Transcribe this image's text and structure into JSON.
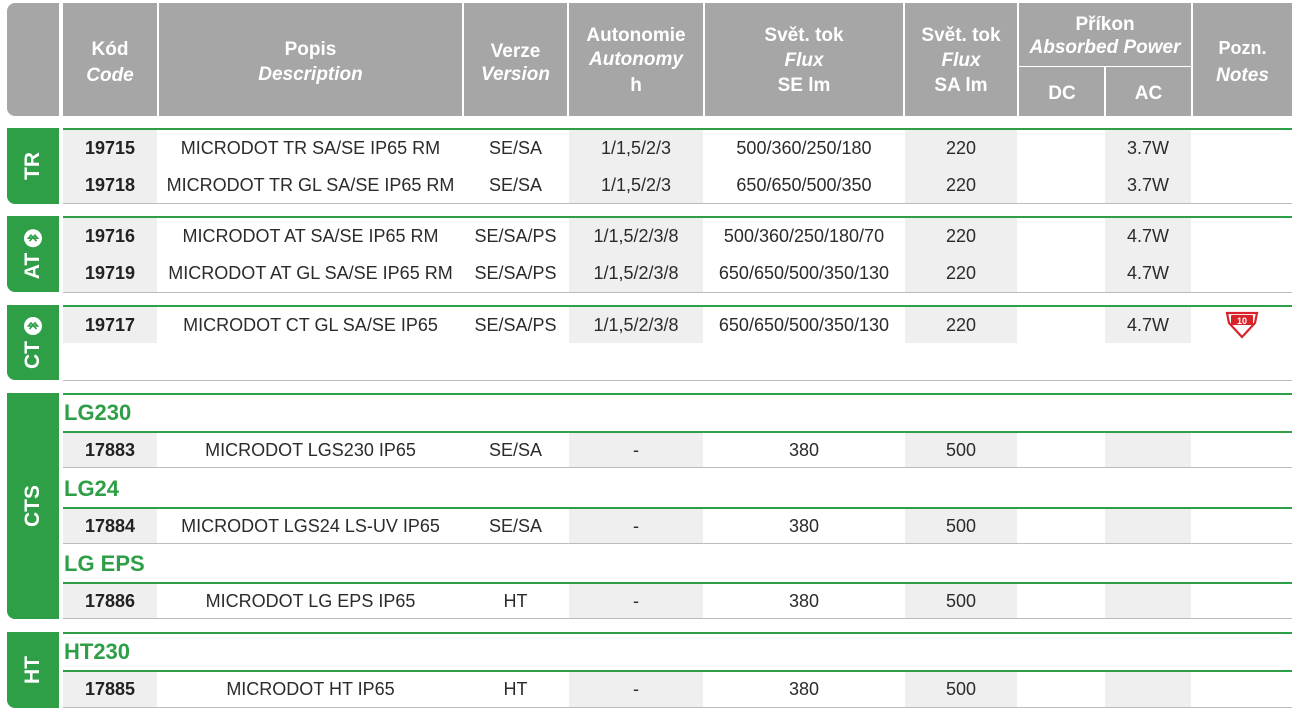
{
  "header": {
    "code": {
      "cz": "Kód",
      "en": "Code"
    },
    "description": {
      "cz": "Popis",
      "en": "Description"
    },
    "version": {
      "cz": "Verze",
      "en": "Version"
    },
    "autonomy": {
      "cz": "Autonomie",
      "en": "Autonomy",
      "unit": "h"
    },
    "flux_se": {
      "cz": "Svět. tok",
      "en": "Flux",
      "unit": "SE lm"
    },
    "flux_sa": {
      "cz": "Svět. tok",
      "en": "Flux",
      "unit": "SA lm"
    },
    "power": {
      "cz": "Příkon",
      "en": "Absorbed Power",
      "dc": "DC",
      "ac": "AC"
    },
    "notes": {
      "cz": "Pozn.",
      "en": "Notes"
    }
  },
  "groups": {
    "tr": {
      "label": "TR"
    },
    "at": {
      "label": "AT"
    },
    "ct": {
      "label": "CT"
    },
    "cts": {
      "label": "CTS"
    },
    "ht": {
      "label": "HT"
    }
  },
  "subheads": {
    "lg230": "LG230",
    "lg24": "LG24",
    "lgeps": "LG EPS",
    "ht230": "HT230"
  },
  "rows": {
    "r19715": {
      "code": "19715",
      "desc": "MICRODOT TR SA/SE IP65 RM",
      "ver": "SE/SA",
      "aut": "1/1,5/2/3",
      "se": "500/360/250/180",
      "sa": "220",
      "dc": "",
      "ac": "3.7W"
    },
    "r19718": {
      "code": "19718",
      "desc": "MICRODOT TR GL SA/SE IP65 RM",
      "ver": "SE/SA",
      "aut": "1/1,5/2/3",
      "se": "650/650/500/350",
      "sa": "220",
      "dc": "",
      "ac": "3.7W"
    },
    "r19716": {
      "code": "19716",
      "desc": "MICRODOT AT SA/SE IP65 RM",
      "ver": "SE/SA/PS",
      "aut": "1/1,5/2/3/8",
      "se": "500/360/250/180/70",
      "sa": "220",
      "dc": "",
      "ac": "4.7W"
    },
    "r19719": {
      "code": "19719",
      "desc": "MICRODOT AT GL SA/SE IP65 RM",
      "ver": "SE/SA/PS",
      "aut": "1/1,5/2/3/8",
      "se": "650/650/500/350/130",
      "sa": "220",
      "dc": "",
      "ac": "4.7W"
    },
    "r19717": {
      "code": "19717",
      "desc": "MICRODOT CT GL SA/SE IP65",
      "ver": "SE/SA/PS",
      "aut": "1/1,5/2/3/8",
      "se": "650/650/500/350/130",
      "sa": "220",
      "dc": "",
      "ac": "4.7W",
      "badge": "10"
    },
    "r17883": {
      "code": "17883",
      "desc": "MICRODOT LGS230 IP65",
      "ver": "SE/SA",
      "aut": "-",
      "se": "380",
      "sa": "500"
    },
    "r17884": {
      "code": "17884",
      "desc": "MICRODOT LGS24 LS-UV IP65",
      "ver": "SE/SA",
      "aut": "-",
      "se": "380",
      "sa": "500"
    },
    "r17886": {
      "code": "17886",
      "desc": "MICRODOT LG EPS IP65",
      "ver": "HT",
      "aut": "-",
      "se": "380",
      "sa": "500"
    },
    "r17885": {
      "code": "17885",
      "desc": "MICRODOT HT IP65",
      "ver": "HT",
      "aut": "-",
      "se": "380",
      "sa": "500"
    }
  },
  "colors": {
    "accent": "#2e9e47",
    "header": "#a6a6a6",
    "shade": "#efefef"
  },
  "icons": {
    "bluetooth": "bluetooth-icon",
    "warranty": "warranty-badge-icon"
  }
}
